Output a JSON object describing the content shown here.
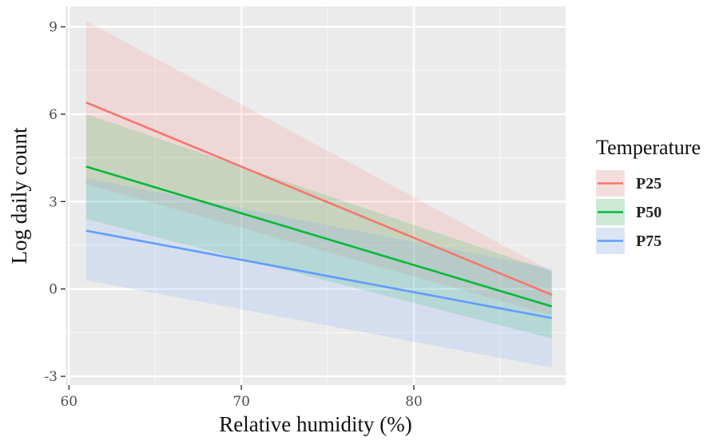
{
  "chart_data": {
    "type": "line",
    "xlabel": "Relative humidity (%)",
    "ylabel": "Log daily count",
    "xlim": [
      59.8,
      88.8
    ],
    "ylim": [
      -3.3,
      9.7
    ],
    "xticks": [
      60,
      70,
      80
    ],
    "yticks": [
      -3,
      0,
      3,
      6,
      9
    ],
    "grid": true,
    "legend": {
      "title": "Temperature",
      "position": "right"
    },
    "series": [
      {
        "name": "P25",
        "color": "#F8766D",
        "x": [
          61,
          88
        ],
        "y": [
          6.4,
          -0.2
        ],
        "lower": [
          3.6,
          -0.9
        ],
        "upper": [
          9.2,
          0.6
        ]
      },
      {
        "name": "P50",
        "color": "#00BA38",
        "x": [
          61,
          88
        ],
        "y": [
          4.2,
          -0.6
        ],
        "lower": [
          2.4,
          -1.7
        ],
        "upper": [
          6.0,
          0.6
        ]
      },
      {
        "name": "P75",
        "color": "#619CFF",
        "x": [
          61,
          88
        ],
        "y": [
          2.0,
          -1.0
        ],
        "lower": [
          0.3,
          -2.7
        ],
        "upper": [
          3.8,
          0.7
        ]
      }
    ]
  }
}
